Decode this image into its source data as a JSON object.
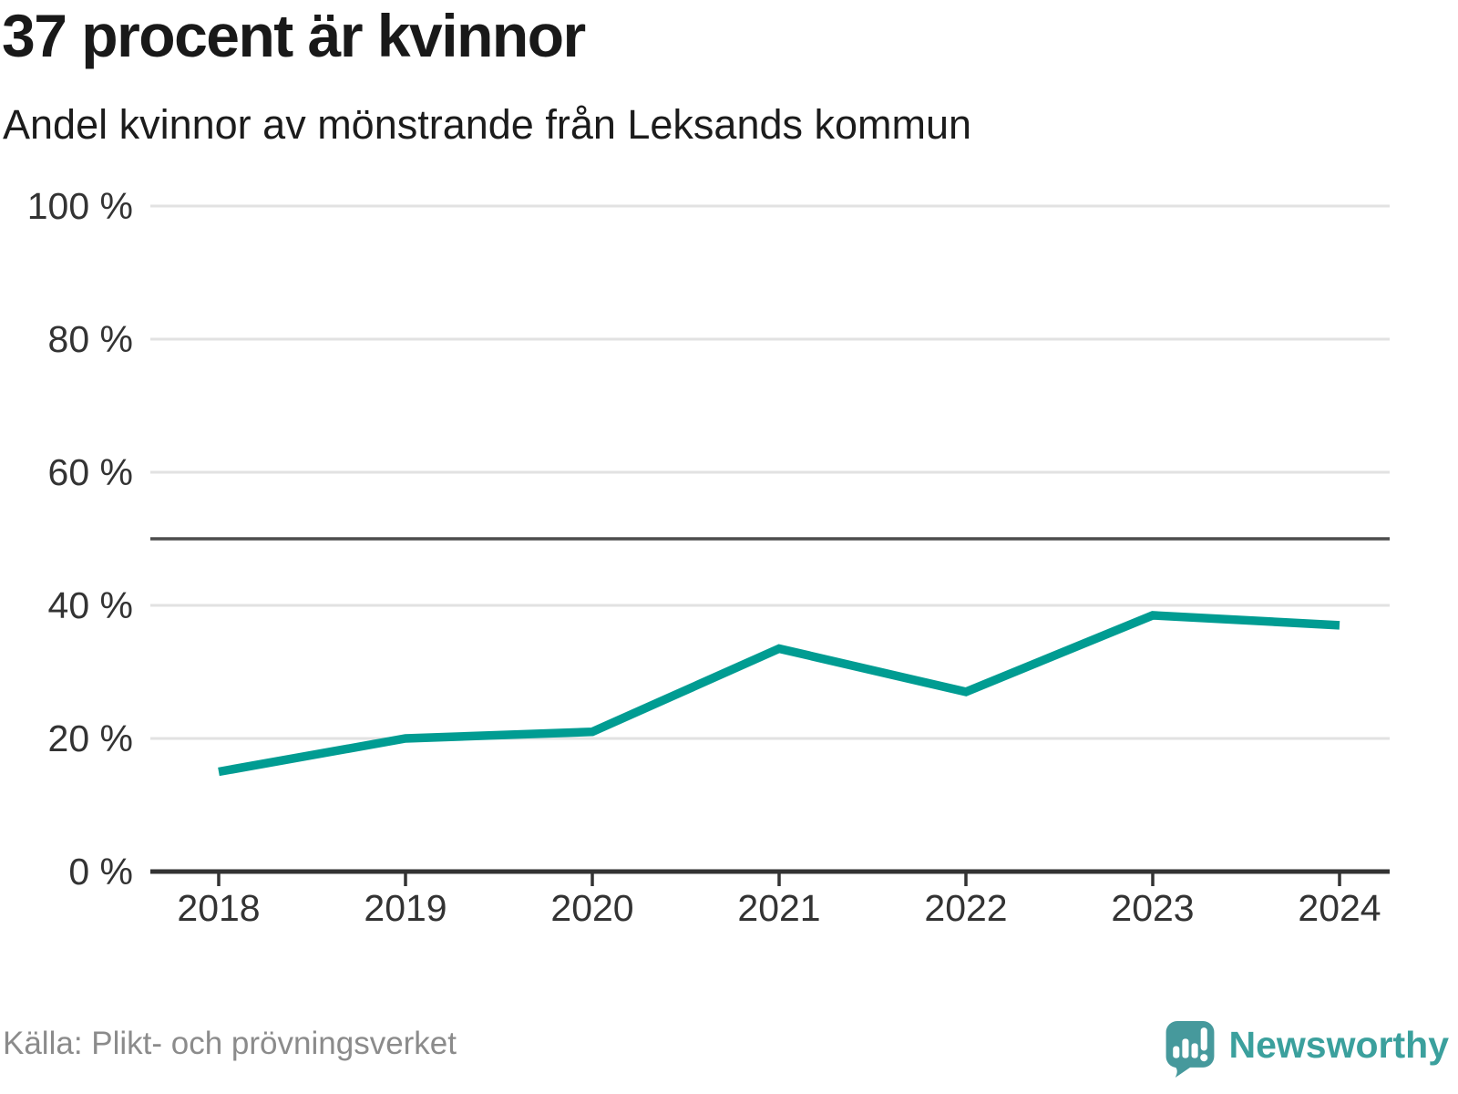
{
  "header": {
    "title": "37 procent är kvinnor",
    "subtitle": "Andel kvinnor av mönstrande från Leksands kommun"
  },
  "chart_data": {
    "type": "line",
    "title": "37 procent är kvinnor",
    "subtitle": "Andel kvinnor av mönstrande från Leksands kommun",
    "x": [
      2018,
      2019,
      2020,
      2021,
      2022,
      2023,
      2024
    ],
    "values": [
      15,
      20,
      21,
      33.5,
      27,
      38.5,
      37
    ],
    "ylim": [
      0,
      100
    ],
    "yticks": [
      0,
      20,
      40,
      60,
      80,
      100
    ],
    "ytick_suffix": " %",
    "reference_line": 50,
    "grid": true,
    "legend": "none",
    "xlabel": "",
    "ylabel": ""
  },
  "footer": {
    "source": "Källa: Plikt- och prövningsverket",
    "brand": "Newsworthy"
  },
  "colors": {
    "line": "#009C92",
    "axis": "#333333",
    "grid": "#E2E2E2",
    "reference": "#4D4D4D",
    "tick_text": "#333333",
    "muted_text": "#8B8B8B",
    "logo": "#46999C",
    "logo_text": "#3BA09D"
  }
}
